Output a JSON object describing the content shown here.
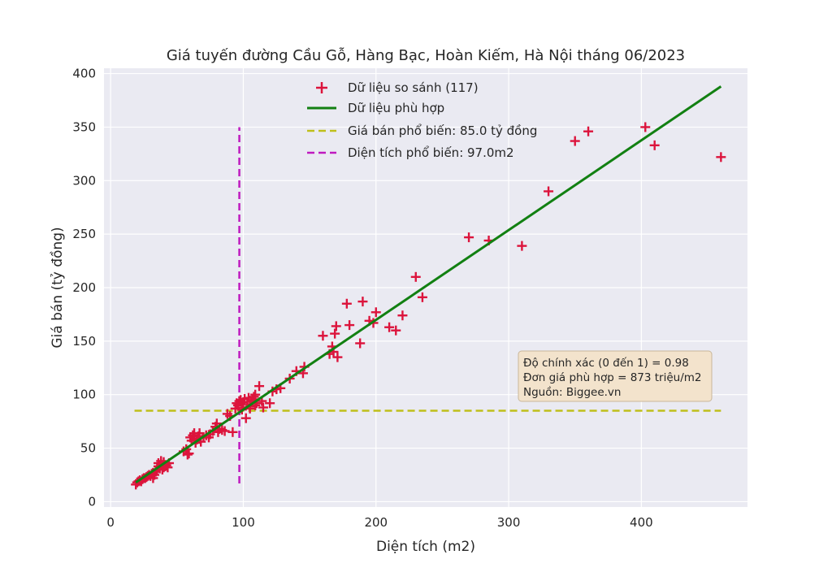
{
  "chart_data": {
    "type": "scatter",
    "title": "Giá tuyến đường Cầu Gỗ, Hàng Bạc, Hoàn Kiếm, Hà Nội tháng 06/2023",
    "xlabel": "Diện tích (m2)",
    "ylabel": "Giá bán (tỷ đồng)",
    "xlim": [
      -5,
      480
    ],
    "ylim": [
      -5,
      405
    ],
    "xticks": [
      0,
      100,
      200,
      300,
      400
    ],
    "yticks": [
      0,
      50,
      100,
      150,
      200,
      250,
      300,
      350,
      400
    ],
    "grid": true,
    "legend_position": "top-center",
    "scatter": {
      "name": "Dữ liệu so sánh (117)",
      "color": "#dc143c",
      "marker": "plus",
      "points": [
        [
          19,
          16
        ],
        [
          20,
          18
        ],
        [
          21,
          19
        ],
        [
          22,
          20
        ],
        [
          23,
          19
        ],
        [
          24,
          21
        ],
        [
          25,
          22
        ],
        [
          26,
          22
        ],
        [
          27,
          23
        ],
        [
          28,
          24
        ],
        [
          29,
          25
        ],
        [
          30,
          24
        ],
        [
          31,
          26
        ],
        [
          32,
          27
        ],
        [
          33,
          25
        ],
        [
          34,
          28
        ],
        [
          35,
          30
        ],
        [
          36,
          33
        ],
        [
          37,
          31
        ],
        [
          38,
          35
        ],
        [
          39,
          30
        ],
        [
          40,
          37
        ],
        [
          41,
          33
        ],
        [
          42,
          34
        ],
        [
          43,
          32
        ],
        [
          44,
          36
        ],
        [
          32,
          22
        ],
        [
          36,
          36
        ],
        [
          38,
          38
        ],
        [
          40,
          32
        ],
        [
          55,
          47
        ],
        [
          57,
          49
        ],
        [
          58,
          44
        ],
        [
          59,
          45
        ],
        [
          60,
          60
        ],
        [
          61,
          57
        ],
        [
          62,
          62
        ],
        [
          63,
          59
        ],
        [
          64,
          55
        ],
        [
          65,
          58
        ],
        [
          66,
          61
        ],
        [
          67,
          64
        ],
        [
          68,
          56
        ],
        [
          70,
          60
        ],
        [
          72,
          62
        ],
        [
          75,
          63
        ],
        [
          77,
          66
        ],
        [
          79,
          70
        ],
        [
          80,
          73
        ],
        [
          81,
          65
        ],
        [
          82,
          68
        ],
        [
          84,
          67
        ],
        [
          86,
          66
        ],
        [
          88,
          82
        ],
        [
          90,
          80
        ],
        [
          92,
          65
        ],
        [
          94,
          87
        ],
        [
          95,
          92
        ],
        [
          96,
          90
        ],
        [
          97,
          94
        ],
        [
          98,
          95
        ],
        [
          99,
          88
        ],
        [
          100,
          93
        ],
        [
          101,
          96
        ],
        [
          102,
          78
        ],
        [
          103,
          91
        ],
        [
          104,
          97
        ],
        [
          105,
          89
        ],
        [
          106,
          94
        ],
        [
          107,
          95
        ],
        [
          108,
          98
        ],
        [
          109,
          90
        ],
        [
          110,
          92
        ],
        [
          112,
          108
        ],
        [
          114,
          94
        ],
        [
          115,
          88
        ],
        [
          120,
          92
        ],
        [
          122,
          103
        ],
        [
          125,
          105
        ],
        [
          128,
          106
        ],
        [
          135,
          115
        ],
        [
          140,
          122
        ],
        [
          145,
          120
        ],
        [
          146,
          126
        ],
        [
          160,
          155
        ],
        [
          165,
          138
        ],
        [
          167,
          145
        ],
        [
          168,
          140
        ],
        [
          169,
          157
        ],
        [
          170,
          164
        ],
        [
          171,
          135
        ],
        [
          178,
          185
        ],
        [
          180,
          165
        ],
        [
          188,
          148
        ],
        [
          190,
          187
        ],
        [
          195,
          169
        ],
        [
          198,
          167
        ],
        [
          200,
          177
        ],
        [
          210,
          163
        ],
        [
          215,
          160
        ],
        [
          220,
          174
        ],
        [
          230,
          210
        ],
        [
          235,
          191
        ],
        [
          270,
          247
        ],
        [
          285,
          244
        ],
        [
          310,
          239
        ],
        [
          330,
          290
        ],
        [
          350,
          337
        ],
        [
          360,
          346
        ],
        [
          403,
          350
        ],
        [
          410,
          333
        ],
        [
          460,
          322
        ],
        [
          99,
          86
        ],
        [
          105,
          87
        ],
        [
          109,
          100
        ],
        [
          74,
          60
        ],
        [
          63,
          64
        ]
      ]
    },
    "fit_line": {
      "name": "Dữ liệu phù hợp",
      "color": "#128012",
      "x": [
        19,
        460
      ],
      "y": [
        18,
        388
      ]
    },
    "hline": {
      "name": "Giá bán phổ biến: 85.0 tỷ đồng",
      "color": "#bfbf1a",
      "y": 85,
      "x": [
        18,
        460
      ]
    },
    "vline": {
      "name": "Diện tích phổ biến: 97.0m2",
      "color": "#bf1abf",
      "x": 97,
      "y": [
        17,
        350
      ]
    },
    "info_box": [
      "Độ chính xác (0 đến 1) = 0.98",
      "Đơn giá phù hợp = 873 triệu/m2",
      "Nguồn: Biggee.vn"
    ]
  }
}
